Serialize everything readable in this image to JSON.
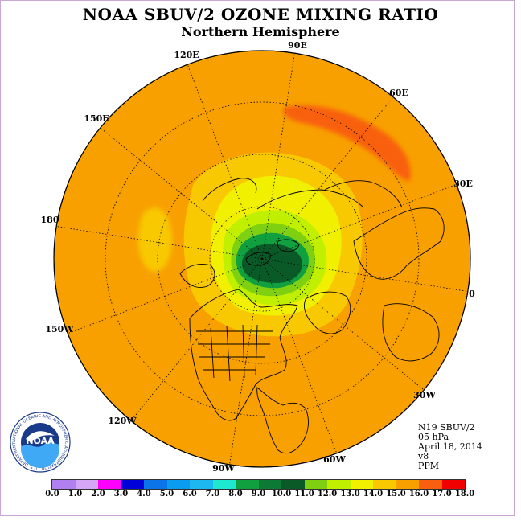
{
  "title": "NOAA SBUV/2 OZONE MIXING RATIO",
  "subtitle": "Northern Hemisphere",
  "longitude_labels": [
    "90E",
    "60E",
    "30E",
    "0",
    "30W",
    "60W",
    "90W",
    "120W",
    "150W",
    "180",
    "150E",
    "120E"
  ],
  "info": {
    "instrument": "N19 SBUV/2",
    "level": "05 hPa",
    "date": "April 18, 2014",
    "version": "v8",
    "units": "PPM"
  },
  "colorbar": {
    "ticks": [
      "0.0",
      "1.0",
      "2.0",
      "3.0",
      "4.0",
      "5.0",
      "6.0",
      "7.0",
      "8.0",
      "9.0",
      "10.0",
      "11.0",
      "12.0",
      "13.0",
      "14.0",
      "15.0",
      "16.0",
      "17.0",
      "18.0"
    ],
    "colors": [
      "#b07ff0",
      "#d6a6f6",
      "#ff00ff",
      "#0000d8",
      "#0a74e8",
      "#0a9cf0",
      "#1eb8f0",
      "#1ee8d0",
      "#10a040",
      "#0c7a34",
      "#0a5a28",
      "#7fd010",
      "#c0f000",
      "#f0f000",
      "#f8c800",
      "#f8a000",
      "#f86010",
      "#f00000",
      "#7a4a30"
    ]
  },
  "logo": {
    "text": "NOAA",
    "ring_text": "NATIONAL OCEANIC AND ATMOSPHERIC ADMINISTRATION · U.S. DEPARTMENT OF COMMERCE"
  },
  "colors": {
    "background_field": "#f8a000",
    "frame_border": "#c9a6d6"
  }
}
